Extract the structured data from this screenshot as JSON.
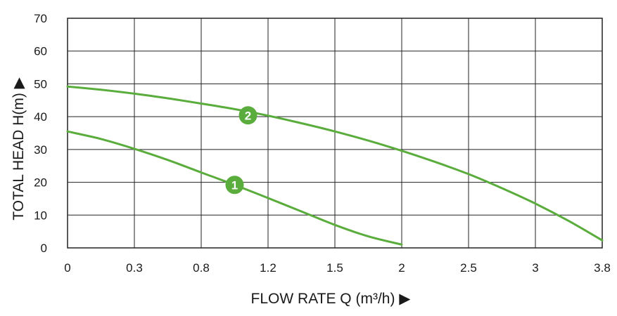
{
  "chart_data": {
    "type": "line",
    "xlabel": "FLOW RATE Q (m³/h) ▶",
    "ylabel": "TOTAL HEAD H(m) ▶",
    "x_categories": [
      "0",
      "0.3",
      "0.8",
      "1.2",
      "1.5",
      "2",
      "2.5",
      "3",
      "3.8"
    ],
    "y_ticks": [
      "0",
      "10",
      "20",
      "30",
      "40",
      "50",
      "60",
      "70"
    ],
    "ylim": [
      0,
      70
    ],
    "grid": true,
    "series": [
      {
        "name": "1",
        "color": "#5aad3c",
        "x_positions": [
          0,
          0.5,
          1,
          1.5,
          2,
          2.5,
          3,
          3.5,
          4,
          4.5,
          5
        ],
        "values": [
          35.5,
          33.2,
          30.2,
          26.8,
          23,
          19.2,
          15.2,
          11.1,
          7,
          3.5,
          1
        ]
      },
      {
        "name": "2",
        "color": "#5aad3c",
        "x_positions": [
          0,
          0.5,
          1,
          1.5,
          2,
          2.5,
          3,
          3.5,
          4,
          4.5,
          5,
          5.5,
          6,
          6.5,
          7,
          7.5,
          8
        ],
        "values": [
          49.2,
          48.2,
          47,
          45.6,
          44,
          42.3,
          40.3,
          38,
          35.5,
          32.7,
          29.6,
          26.2,
          22.5,
          18.2,
          13.5,
          8.2,
          2.3
        ]
      }
    ],
    "markers": [
      {
        "label": "1",
        "x_position": 2.5,
        "value": 19.2
      },
      {
        "label": "2",
        "x_position": 2.7,
        "value": 40.4
      }
    ]
  }
}
